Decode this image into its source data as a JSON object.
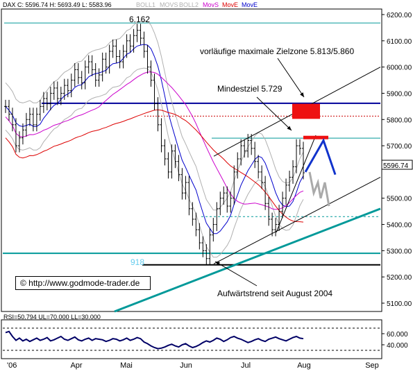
{
  "chart_data": [
    {
      "type": "candlestick",
      "header": {
        "symbol": "DAX",
        "close_label": "C: 5596.74",
        "high_label": "H: 5693.49",
        "low_label": "L: 5583.96",
        "indicators": [
          {
            "label": "BOLL1",
            "color": "#b0b0b0"
          },
          {
            "label": "MOVS",
            "color": "#b0b0b0"
          },
          {
            "label": "BOLL2",
            "color": "#b0b0b0"
          },
          {
            "label": "MovS",
            "color": "#cc00cc"
          },
          {
            "label": "MovE",
            "color": "#dd0000"
          },
          {
            "label": "MovE",
            "color": "#0000cc"
          }
        ]
      },
      "y_ticks": [
        "6200.00",
        "6100.00",
        "6000.00",
        "5900.00",
        "5800.00",
        "5700.00",
        "5500.00",
        "5400.00",
        "5300.00",
        "5200.00",
        "5100.00"
      ],
      "ylim": [
        5070,
        6210
      ],
      "last_value_label": "5596.74",
      "x_ticks": [
        "'06",
        "Apr",
        "Mai",
        "Jun",
        "Jul",
        "Aug",
        "Sep"
      ],
      "annotations": {
        "high": "6.162",
        "low": "918",
        "zielzone": "vorläufige maximale Zielzone 5.813/5.860",
        "mindestziel": "Mindestziel 5.729",
        "trend": "Aufwärtstrend seit August 2004",
        "source": "© http://www.godmode-trader.de"
      },
      "levels": [
        {
          "name": "resistance-6162",
          "value": 6168,
          "color": "#009999"
        },
        {
          "name": "support-5860",
          "value": 5862,
          "color": "#000099"
        },
        {
          "name": "dotted-5813",
          "value": 5813,
          "color": "#cc0000"
        },
        {
          "name": "mindestziel-5729",
          "value": 5729,
          "color": "#009999"
        },
        {
          "name": "dashed-5430",
          "value": 5430,
          "color": "#009999"
        },
        {
          "name": "support-5290",
          "value": 5290,
          "color": "#009999"
        },
        {
          "name": "low-5246",
          "value": 5246,
          "color": "#000000"
        }
      ],
      "closes": [
        5850,
        5820,
        5780,
        5700,
        5730,
        5760,
        5800,
        5820,
        5780,
        5820,
        5850,
        5880,
        5860,
        5900,
        5920,
        5880,
        5900,
        5930,
        5910,
        5950,
        5990,
        5960,
        5940,
        6000,
        6020,
        5990,
        5950,
        5970,
        6030,
        6000,
        6060,
        6080,
        6040,
        6020,
        6060,
        6100,
        6080,
        6120,
        6140,
        6110,
        6060,
        6000,
        5950,
        5860,
        5780,
        5700,
        5650,
        5600,
        5680,
        5640,
        5590,
        5520,
        5560,
        5460,
        5420,
        5380,
        5330,
        5300,
        5270,
        5360,
        5400,
        5460,
        5500,
        5520,
        5470,
        5500,
        5600,
        5650,
        5700,
        5680,
        5720,
        5690,
        5640,
        5600,
        5560,
        5480,
        5420,
        5380,
        5400,
        5450,
        5500,
        5550,
        5580,
        5620,
        5700,
        5690,
        5597
      ],
      "rsi": {
        "label": "RSI=50.794 UL=70.000 LL=30.000",
        "ticks": [
          "60.000",
          "40.000"
        ],
        "ul": 70,
        "ll": 30,
        "ylim": [
          20,
          80
        ],
        "values": [
          62,
          64,
          55,
          48,
          52,
          47,
          50,
          46,
          49,
          52,
          48,
          50,
          53,
          47,
          49,
          52,
          55,
          50,
          48,
          51,
          54,
          49,
          47,
          50,
          52,
          48,
          51,
          50,
          49,
          46,
          48,
          51,
          50,
          47,
          49,
          52,
          48,
          50,
          53,
          51,
          45,
          42,
          38,
          35,
          33,
          34,
          36,
          39,
          41,
          38,
          36,
          40,
          42,
          38,
          35,
          37,
          40,
          44,
          47,
          45,
          48,
          52,
          50,
          46,
          49,
          53,
          55,
          52,
          50,
          47,
          44,
          46,
          49,
          51,
          48,
          46,
          50,
          52,
          54,
          51,
          49,
          47,
          50,
          53,
          55,
          52,
          51
        ]
      }
    }
  ]
}
